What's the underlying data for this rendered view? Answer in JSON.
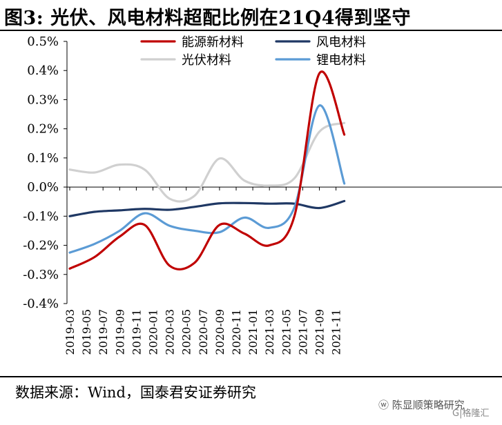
{
  "title": "图3: 光伏、风电材料超配比例在21Q4得到坚守",
  "source": "数据来源：Wind，国泰君安证券研究",
  "watermark": "陈显顺策略研究",
  "watermark_mark": "G|格隆汇",
  "chart_data": {
    "type": "line",
    "y_unit": "%",
    "ylim": [
      -0.4,
      0.5
    ],
    "y_ticks": [
      "0.5%",
      "0.4%",
      "0.3%",
      "0.2%",
      "0.1%",
      "0.0%",
      "-0.1%",
      "-0.2%",
      "-0.3%",
      "-0.4%"
    ],
    "y_tick_values": [
      0.5,
      0.4,
      0.3,
      0.2,
      0.1,
      0.0,
      -0.1,
      -0.2,
      -0.3,
      -0.4
    ],
    "x_tick_labels": [
      "2019-03",
      "2019-05",
      "2019-07",
      "2019-09",
      "2019-11",
      "2020-01",
      "2020-03",
      "2020-05",
      "2020-07",
      "2020-09",
      "2020-11",
      "2021-01",
      "2021-03",
      "2021-05",
      "2021-07",
      "2021-09",
      "2021-11"
    ],
    "x": [
      "2019-03",
      "2019-06",
      "2019-09",
      "2019-12",
      "2020-03",
      "2020-06",
      "2020-09",
      "2020-12",
      "2021-03",
      "2021-06",
      "2021-09",
      "2021-12"
    ],
    "legend_position": "top",
    "series": [
      {
        "name": "能源新材料",
        "color": "#c00000",
        "values": [
          -0.28,
          -0.24,
          -0.17,
          -0.13,
          -0.27,
          -0.26,
          -0.13,
          -0.16,
          -0.2,
          -0.1,
          0.39,
          0.18
        ]
      },
      {
        "name": "风电材料",
        "color": "#1f3864",
        "values": [
          -0.1,
          -0.085,
          -0.08,
          -0.075,
          -0.078,
          -0.068,
          -0.056,
          -0.055,
          -0.057,
          -0.057,
          -0.072,
          -0.048
        ]
      },
      {
        "name": "光伏材料",
        "color": "#d0d0d0",
        "values": [
          0.06,
          0.05,
          0.077,
          0.06,
          -0.04,
          -0.03,
          0.098,
          0.022,
          0.005,
          0.03,
          0.19,
          0.22
        ]
      },
      {
        "name": "锂电材料",
        "color": "#5b9bd5",
        "values": [
          -0.225,
          -0.195,
          -0.15,
          -0.09,
          -0.133,
          -0.15,
          -0.155,
          -0.105,
          -0.14,
          -0.07,
          0.28,
          0.012
        ]
      }
    ]
  }
}
